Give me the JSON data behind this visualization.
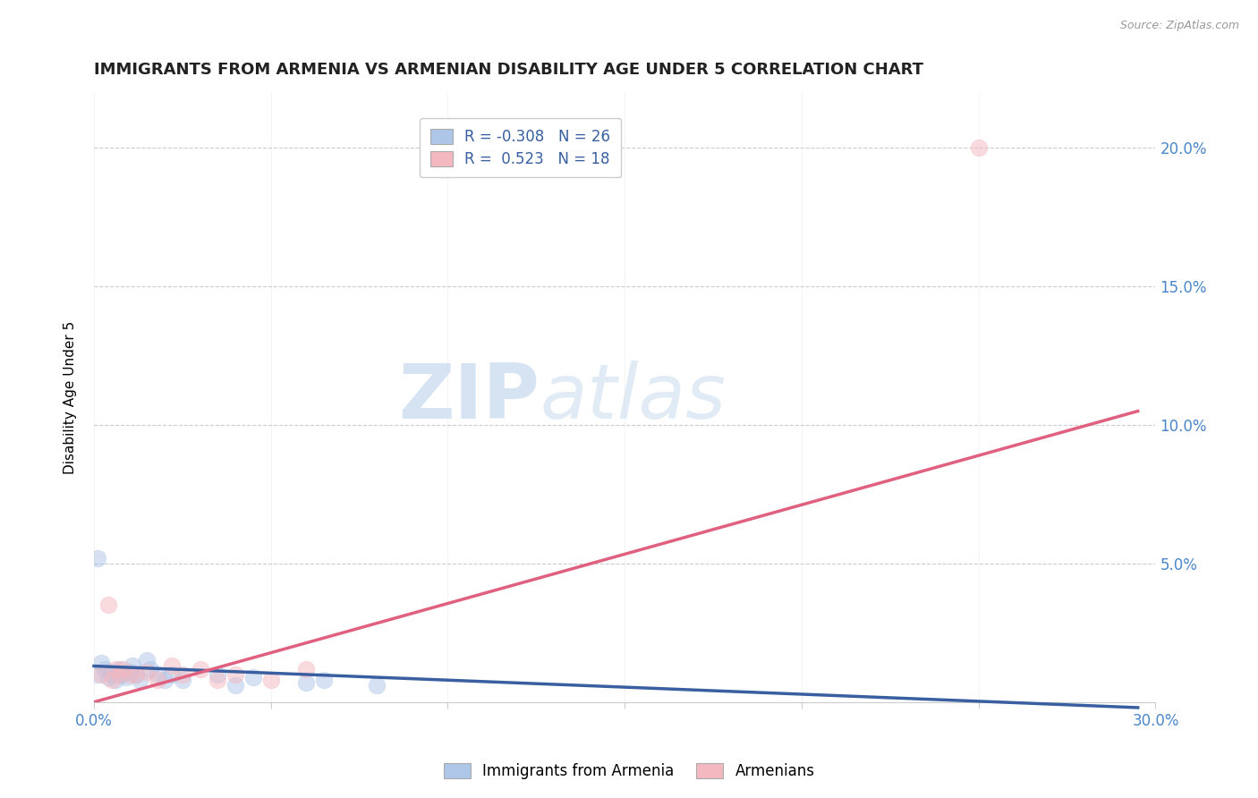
{
  "title": "IMMIGRANTS FROM ARMENIA VS ARMENIAN DISABILITY AGE UNDER 5 CORRELATION CHART",
  "source": "Source: ZipAtlas.com",
  "ylabel": "Disability Age Under 5",
  "xlim": [
    0.0,
    0.3
  ],
  "ylim": [
    0.0,
    0.22
  ],
  "xticks": [
    0.0,
    0.05,
    0.1,
    0.15,
    0.2,
    0.25,
    0.3
  ],
  "xtick_labels": [
    "0.0%",
    "",
    "",
    "",
    "",
    "",
    "30.0%"
  ],
  "yticks": [
    0.0,
    0.05,
    0.1,
    0.15,
    0.2
  ],
  "ytick_labels": [
    "",
    "5.0%",
    "10.0%",
    "15.0%",
    "20.0%"
  ],
  "watermark_zip": "ZIP",
  "watermark_atlas": "atlas",
  "legend_entries": [
    {
      "label": "Immigrants from Armenia",
      "color": "#aec6e8",
      "R": "-0.308",
      "N": "26"
    },
    {
      "label": "Armenians",
      "color": "#f4b8c1",
      "R": "0.523",
      "N": "18"
    }
  ],
  "blue_scatter_x": [
    0.001,
    0.002,
    0.003,
    0.004,
    0.005,
    0.006,
    0.007,
    0.008,
    0.009,
    0.01,
    0.011,
    0.012,
    0.013,
    0.015,
    0.016,
    0.018,
    0.02,
    0.022,
    0.025,
    0.035,
    0.04,
    0.045,
    0.06,
    0.065,
    0.08,
    0.001
  ],
  "blue_scatter_y": [
    0.052,
    0.014,
    0.012,
    0.009,
    0.01,
    0.008,
    0.012,
    0.01,
    0.009,
    0.011,
    0.013,
    0.01,
    0.008,
    0.015,
    0.012,
    0.01,
    0.008,
    0.01,
    0.008,
    0.01,
    0.006,
    0.009,
    0.007,
    0.008,
    0.006,
    0.01
  ],
  "pink_scatter_x": [
    0.002,
    0.004,
    0.005,
    0.006,
    0.007,
    0.008,
    0.01,
    0.012,
    0.015,
    0.018,
    0.022,
    0.025,
    0.03,
    0.035,
    0.04,
    0.05,
    0.06,
    0.25
  ],
  "pink_scatter_y": [
    0.01,
    0.035,
    0.008,
    0.012,
    0.01,
    0.012,
    0.01,
    0.01,
    0.011,
    0.008,
    0.013,
    0.01,
    0.012,
    0.008,
    0.01,
    0.008,
    0.012,
    0.2
  ],
  "blue_line_x": [
    0.0,
    0.295
  ],
  "blue_line_y": [
    0.013,
    -0.002
  ],
  "pink_line_x": [
    0.0,
    0.295
  ],
  "pink_line_y": [
    0.0,
    0.105
  ],
  "scatter_size": 180,
  "scatter_alpha": 0.5,
  "line_color_blue": "#3a5fa0",
  "line_color_pink": "#e06080",
  "grid_color": "#cccccc",
  "hgrid_color": "#cccccc",
  "bg_color": "#ffffff",
  "title_fontsize": 13,
  "axis_label_fontsize": 11,
  "tick_color": "#4a86c8",
  "source_color": "#999999"
}
